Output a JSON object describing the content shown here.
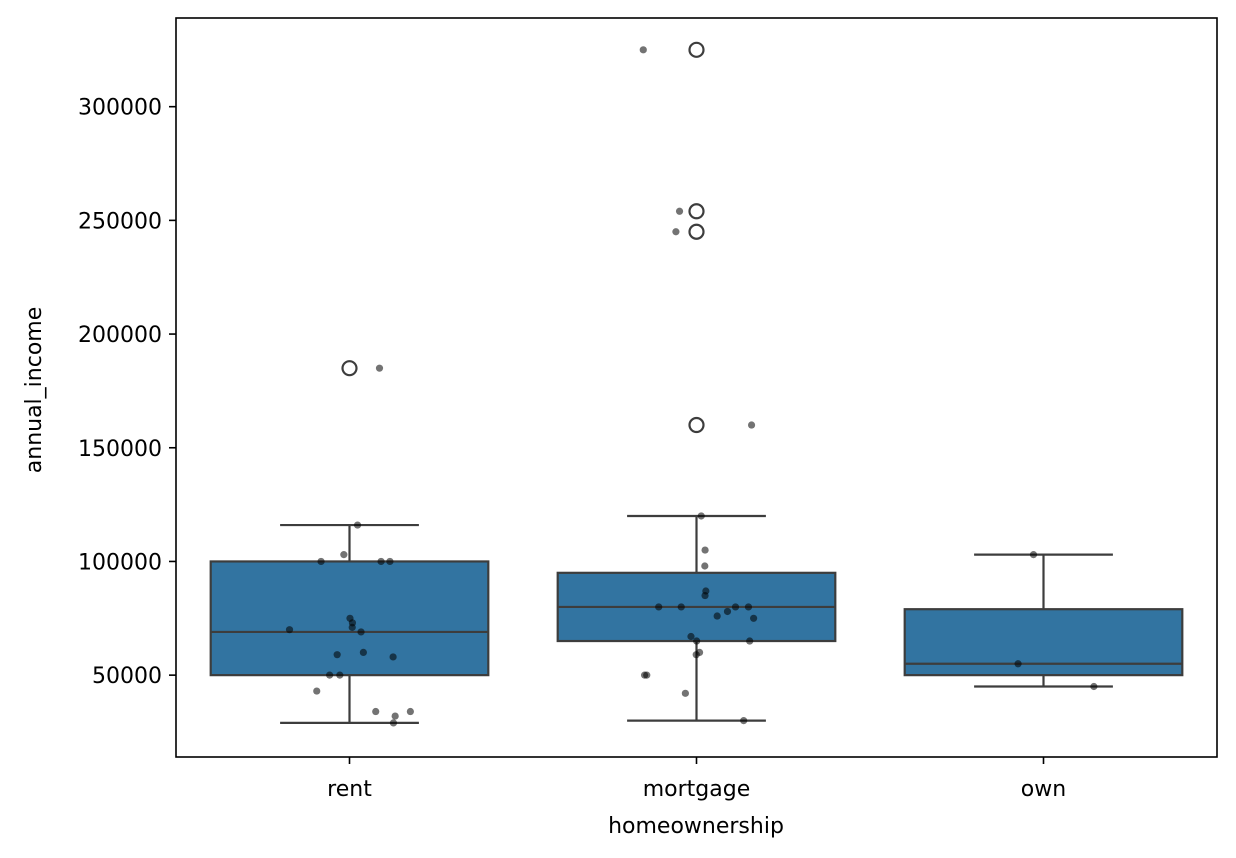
{
  "chart_data": {
    "type": "box",
    "xlabel": "homeownership",
    "ylabel": "annual_income",
    "categories": [
      "rent",
      "mortgage",
      "own"
    ],
    "ylim": [
      14000,
      339000
    ],
    "yticks": [
      50000,
      100000,
      150000,
      200000,
      250000,
      300000
    ],
    "grid": false,
    "colors": {
      "box": "#3274a1",
      "line": "#3d3d3d",
      "point": "#000000"
    },
    "boxes": [
      {
        "category": "rent",
        "whisker_low": 29000,
        "q1": 50000,
        "median": 69000,
        "q3": 100000,
        "whisker_high": 116000,
        "outliers": [
          185000
        ]
      },
      {
        "category": "mortgage",
        "whisker_low": 30000,
        "q1": 65000,
        "median": 80000,
        "q3": 95000,
        "whisker_high": 120000,
        "outliers": [
          160000,
          245000,
          254000,
          325000
        ]
      },
      {
        "category": "own",
        "whisker_low": 45000,
        "q1": 50000,
        "median": 55000,
        "q3": 79000,
        "whisker_high": 103000,
        "outliers": []
      }
    ],
    "points": [
      {
        "category": "rent",
        "values": [
          185000,
          116000,
          103000,
          100000,
          100000,
          100000,
          75000,
          73000,
          71000,
          70000,
          69000,
          60000,
          59000,
          58000,
          50000,
          50000,
          43000,
          34000,
          34000,
          32000,
          29000
        ]
      },
      {
        "category": "mortgage",
        "values": [
          325000,
          254000,
          245000,
          160000,
          120000,
          105000,
          98000,
          87000,
          85000,
          80000,
          80000,
          80000,
          80000,
          78000,
          76000,
          75000,
          67000,
          65000,
          65000,
          60000,
          59000,
          50000,
          50000,
          42000,
          30000
        ]
      },
      {
        "category": "own",
        "values": [
          103000,
          55000,
          45000
        ]
      }
    ]
  }
}
